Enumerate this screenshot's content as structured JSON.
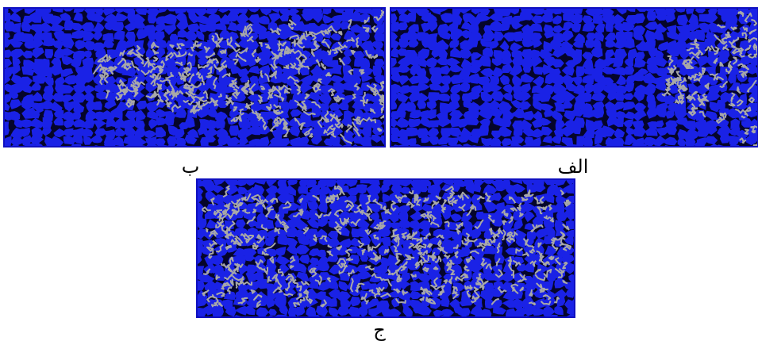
{
  "panels": [
    {
      "label": "ب"
    },
    {
      "label": "الف"
    },
    {
      "label": "ج"
    }
  ]
}
